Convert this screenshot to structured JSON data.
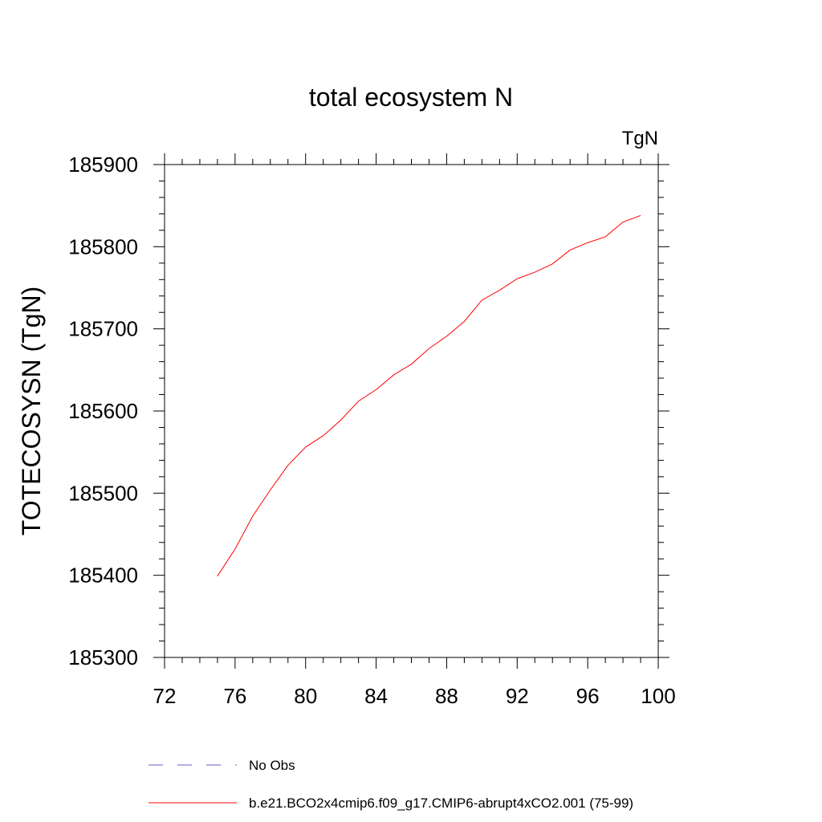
{
  "chart_data": {
    "type": "line",
    "title": "total ecosystem N",
    "units": "TgN",
    "ylabel": "TOTECOSYSN  (TgN)",
    "xlabel": "",
    "xlim": [
      72,
      100
    ],
    "ylim": [
      185300,
      185900
    ],
    "x_ticks": [
      "72",
      "76",
      "80",
      "84",
      "88",
      "92",
      "96",
      "100"
    ],
    "y_ticks": [
      "185900",
      "185800",
      "185700",
      "185600",
      "185500",
      "185400",
      "185300"
    ],
    "series": [
      {
        "name": "b.e21.BCO2x4cmip6.f09_g17.CMIP6-abrupt4xCO2.001 (75-99)",
        "color": "#ff0000",
        "style": "solid",
        "x": [
          75,
          76,
          77,
          78,
          79,
          80,
          81,
          82,
          83,
          84,
          85,
          86,
          87,
          88,
          89,
          90,
          91,
          92,
          93,
          94,
          95,
          96,
          97,
          98,
          99
        ],
        "y": [
          185399,
          185432,
          185472,
          185504,
          185534,
          185556,
          185570,
          185589,
          185612,
          185626,
          185644,
          185657,
          185676,
          185691,
          185709,
          185735,
          185747,
          185761,
          185769,
          185779,
          185796,
          185805,
          185812,
          185830,
          185838
        ]
      }
    ],
    "legend": {
      "placement": "bottom",
      "entries": [
        {
          "label": "No Obs",
          "color": "#6a5acd",
          "style": "dashed"
        },
        {
          "label": "b.e21.BCO2x4cmip6.f09_g17.CMIP6-abrupt4xCO2.001 (75-99)",
          "color": "#ff0000",
          "style": "solid"
        }
      ]
    },
    "grid": false
  }
}
